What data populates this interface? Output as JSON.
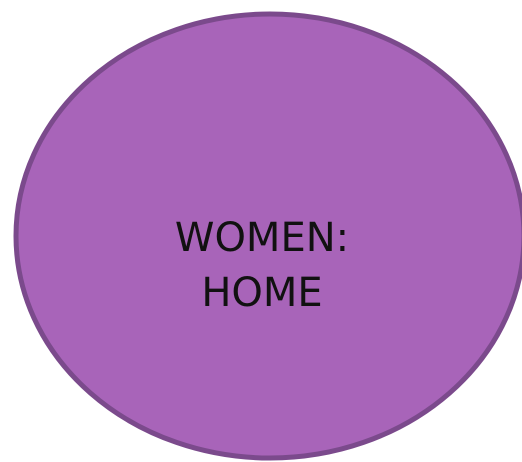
{
  "shape": {
    "lines": [
      "WOMEN:",
      "HOME"
    ]
  }
}
